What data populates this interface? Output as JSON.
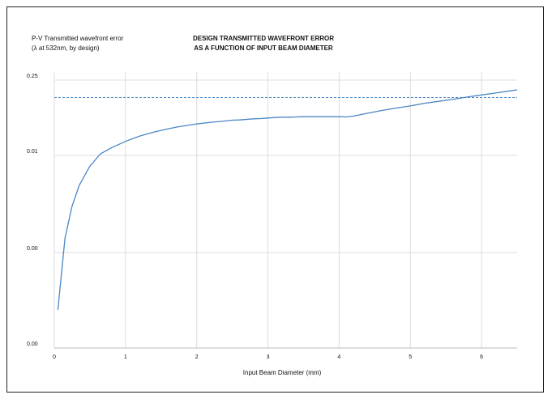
{
  "chart_data": {
    "type": "line",
    "title_lines": [
      "DESIGN TRANSMITTED WAVEFRONT ERROR",
      "AS A FUNCTION OF INPUT BEAM DIAMETER"
    ],
    "ylabel_lines": [
      "P-V Transmitted wavefront error",
      "(λ at 532nm, by design)"
    ],
    "xlabel": "Input Beam Diameter (mm)",
    "x_ticks": [
      0,
      1,
      2,
      3,
      4,
      5,
      6
    ],
    "y_tick_labels": [
      "0.00",
      "0.00",
      "0.01",
      "0.25"
    ],
    "xlim": [
      0,
      6.5
    ],
    "grid": true,
    "reference_line": {
      "style": "dashed",
      "color": "#4a86c5",
      "level_fraction": 0.935
    },
    "series_color": "#4a86c5",
    "series": [
      {
        "x": [
          0.05,
          0.15,
          0.25,
          0.35,
          0.5,
          0.65,
          0.8,
          1.0,
          1.2,
          1.4,
          1.6,
          1.75,
          2.0,
          2.2,
          2.4,
          2.5,
          2.6,
          2.8,
          2.9,
          3.0,
          3.1,
          3.2,
          3.3,
          3.4,
          3.5,
          3.6,
          3.8,
          4.0,
          4.1,
          4.2,
          4.4,
          4.6,
          4.8,
          5.0,
          5.2,
          5.4,
          5.6,
          5.8,
          6.0,
          6.2,
          6.4,
          6.5
        ],
        "y_log10": [
          -3.6,
          -2.85,
          -2.52,
          -2.31,
          -2.11,
          -1.97,
          -1.86,
          -1.74,
          -1.64,
          -1.565,
          -1.505,
          -1.465,
          -1.415,
          -1.385,
          -1.36,
          -1.345,
          -1.34,
          -1.32,
          -1.315,
          -1.305,
          -1.295,
          -1.29,
          -1.29,
          -1.285,
          -1.28,
          -1.28,
          -1.28,
          -1.28,
          -1.285,
          -1.27,
          -1.215,
          -1.165,
          -1.12,
          -1.08,
          -1.03,
          -0.995,
          -0.955,
          -0.915,
          -0.875,
          -0.84,
          -0.8,
          -0.78
        ]
      }
    ]
  }
}
